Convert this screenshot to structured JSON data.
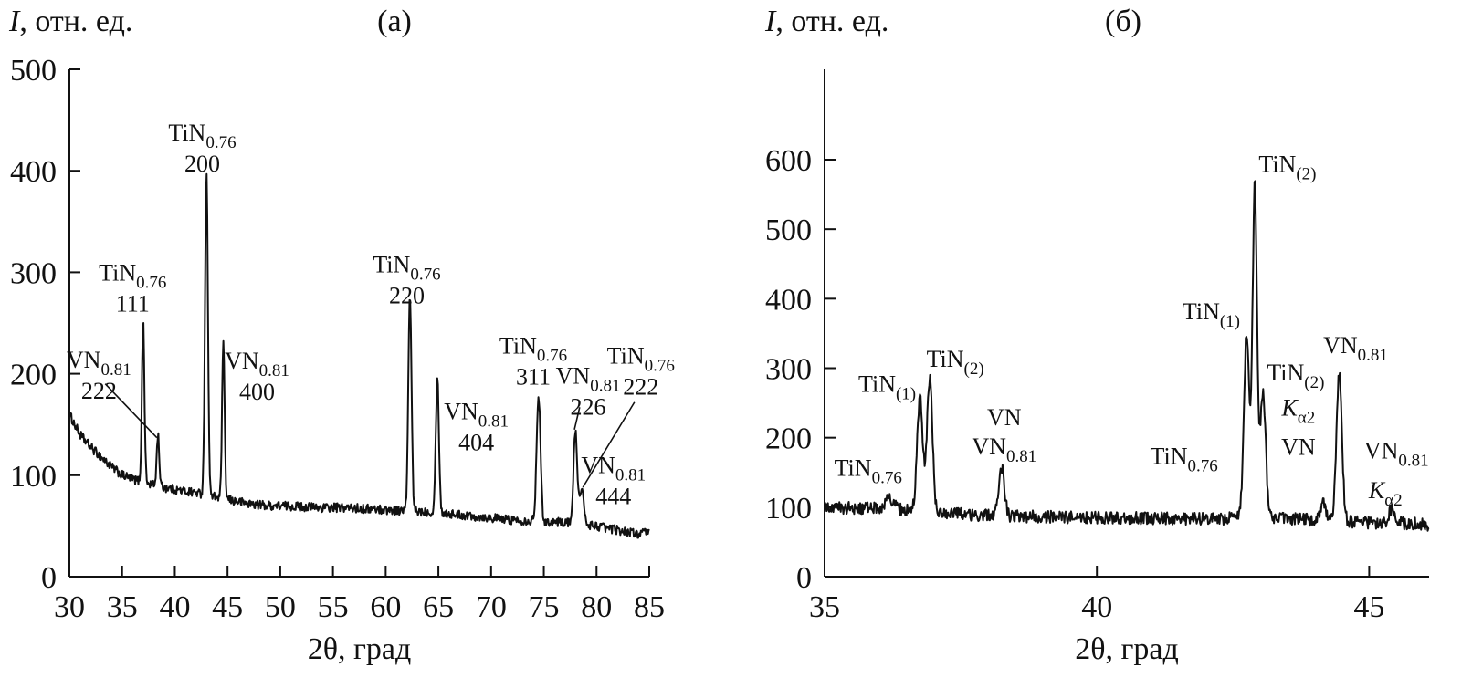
{
  "chart_data": [
    {
      "id": "a",
      "type": "line",
      "panel_label": "(а)",
      "ylabel": "I, отн. ед.",
      "xlabel": "2θ, град",
      "xlim": [
        30,
        85
      ],
      "ylim": [
        0,
        500
      ],
      "xticks": [
        30,
        35,
        40,
        45,
        50,
        55,
        60,
        65,
        70,
        75,
        80,
        85
      ],
      "yticks": [
        0,
        100,
        200,
        300,
        400,
        500
      ],
      "grid": false,
      "baseline": [
        [
          30,
          160
        ],
        [
          31,
          140
        ],
        [
          32,
          128
        ],
        [
          33,
          118
        ],
        [
          34,
          108
        ],
        [
          35,
          100
        ],
        [
          36,
          96
        ],
        [
          37,
          93
        ],
        [
          38,
          90
        ],
        [
          39,
          88
        ],
        [
          40,
          86
        ],
        [
          41,
          84
        ],
        [
          42,
          83
        ],
        [
          43,
          80
        ],
        [
          44,
          78
        ],
        [
          45,
          76
        ],
        [
          46,
          74
        ],
        [
          47,
          72
        ],
        [
          48,
          71
        ],
        [
          49,
          70
        ],
        [
          50,
          70
        ],
        [
          52,
          69
        ],
        [
          54,
          68
        ],
        [
          56,
          68
        ],
        [
          58,
          67
        ],
        [
          60,
          66
        ],
        [
          62,
          65
        ],
        [
          64,
          64
        ],
        [
          66,
          62
        ],
        [
          68,
          60
        ],
        [
          70,
          58
        ],
        [
          72,
          56
        ],
        [
          74,
          55
        ],
        [
          76,
          54
        ],
        [
          78,
          53
        ],
        [
          80,
          50
        ],
        [
          82,
          46
        ],
        [
          84,
          42
        ],
        [
          85,
          44
        ]
      ],
      "peaks": [
        {
          "x": 37.0,
          "y": 252,
          "w": 0.12
        },
        {
          "x": 38.4,
          "y": 140,
          "w": 0.12
        },
        {
          "x": 43.0,
          "y": 396,
          "w": 0.14
        },
        {
          "x": 44.6,
          "y": 230,
          "w": 0.12
        },
        {
          "x": 62.3,
          "y": 276,
          "w": 0.15
        },
        {
          "x": 64.9,
          "y": 195,
          "w": 0.15
        },
        {
          "x": 74.5,
          "y": 180,
          "w": 0.18
        },
        {
          "x": 78.0,
          "y": 142,
          "w": 0.18
        },
        {
          "x": 78.6,
          "y": 86,
          "w": 0.18
        }
      ],
      "annotations": [
        {
          "phase": "TiN",
          "sub": "0.76",
          "hkl": "111",
          "x": 36.0,
          "y": 292,
          "anchor": "middle"
        },
        {
          "phase": "VN",
          "sub": "0.81",
          "hkl": "222",
          "x": 32.8,
          "y": 206,
          "anchor": "middle",
          "leader": [
            [
              33.4,
              190
            ],
            [
              38.3,
              137
            ]
          ]
        },
        {
          "phase": "TiN",
          "sub": "0.76",
          "hkl": "200",
          "x": 42.6,
          "y": 430,
          "anchor": "middle"
        },
        {
          "phase": "VN",
          "sub": "0.81",
          "hkl": "400",
          "x": 47.8,
          "y": 205,
          "anchor": "middle"
        },
        {
          "phase": "TiN",
          "sub": "0.76",
          "hkl": "220",
          "x": 62.0,
          "y": 300,
          "anchor": "middle"
        },
        {
          "phase": "VN",
          "sub": "0.81",
          "hkl": "404",
          "x": 68.6,
          "y": 155,
          "anchor": "middle"
        },
        {
          "phase": "TiN",
          "sub": "0.76",
          "hkl": "311",
          "x": 74.0,
          "y": 220,
          "anchor": "middle"
        },
        {
          "phase": "VN",
          "sub": "0.81",
          "hkl": "226",
          "x": 79.2,
          "y": 190,
          "anchor": "middle",
          "leader": [
            [
              78.4,
              167
            ],
            [
              77.9,
              145
            ]
          ]
        },
        {
          "phase": "TiN",
          "sub": "0.76",
          "hkl": "222",
          "x": 84.2,
          "y": 210,
          "anchor": "middle",
          "leader": [
            [
              83.6,
              172
            ],
            [
              78.7,
              88
            ]
          ]
        },
        {
          "phase": "VN",
          "sub": "0.81",
          "hkl": "444",
          "x": 81.6,
          "y": 102,
          "anchor": "middle"
        }
      ]
    },
    {
      "id": "b",
      "type": "line",
      "panel_label": "(б)",
      "ylabel": "I, отн. ед.",
      "xlabel": "2θ, град",
      "xlim": [
        35,
        46.1
      ],
      "ylim": [
        0,
        730
      ],
      "xticks": [
        35,
        40,
        45
      ],
      "yticks": [
        0,
        100,
        200,
        300,
        400,
        500,
        600
      ],
      "grid": false,
      "baseline": [
        [
          35,
          100
        ],
        [
          36,
          98
        ],
        [
          37,
          92
        ],
        [
          38,
          88
        ],
        [
          39,
          86
        ],
        [
          40,
          85
        ],
        [
          41,
          84
        ],
        [
          42,
          83
        ],
        [
          43,
          85
        ],
        [
          44,
          82
        ],
        [
          45,
          78
        ],
        [
          46,
          76
        ],
        [
          46.1,
          64
        ]
      ],
      "peaks": [
        {
          "x": 36.2,
          "y": 112,
          "w": 0.08
        },
        {
          "x": 36.75,
          "y": 258,
          "w": 0.05
        },
        {
          "x": 36.93,
          "y": 285,
          "w": 0.05
        },
        {
          "x": 38.25,
          "y": 158,
          "w": 0.05
        },
        {
          "x": 42.75,
          "y": 350,
          "w": 0.05
        },
        {
          "x": 42.9,
          "y": 562,
          "w": 0.04
        },
        {
          "x": 43.05,
          "y": 265,
          "w": 0.05
        },
        {
          "x": 44.15,
          "y": 112,
          "w": 0.04
        },
        {
          "x": 44.45,
          "y": 292,
          "w": 0.05
        },
        {
          "x": 45.4,
          "y": 95,
          "w": 0.05
        }
      ],
      "annotations": [
        {
          "phase": "TiN",
          "sub": "0.76",
          "hkl": "",
          "x": 35.8,
          "y": 145,
          "anchor": "middle"
        },
        {
          "phase": "TiN",
          "sub": "(1)",
          "hkl": "",
          "x": 36.15,
          "y": 266,
          "anchor": "middle"
        },
        {
          "phase": "TiN",
          "sub": "(2)",
          "hkl": "",
          "x": 37.4,
          "y": 302,
          "anchor": "middle"
        },
        {
          "phase": "VN",
          "sub": "",
          "hkl": "",
          "x": 38.3,
          "y": 218,
          "anchor": "middle"
        },
        {
          "phase": "VN",
          "sub": "0.81",
          "hkl": "",
          "x": 38.3,
          "y": 176,
          "anchor": "middle"
        },
        {
          "phase": "TiN",
          "sub": "0.76",
          "hkl": "",
          "x": 41.6,
          "y": 162,
          "anchor": "middle"
        },
        {
          "phase": "TiN",
          "sub": "(1)",
          "hkl": "",
          "x": 42.1,
          "y": 370,
          "anchor": "middle"
        },
        {
          "phase": "TiN",
          "sub": "(2)",
          "hkl": "",
          "x": 43.5,
          "y": 582,
          "anchor": "middle"
        },
        {
          "phase": "TiN",
          "sub": "(2)",
          "hkl": "",
          "x": 43.65,
          "y": 282,
          "anchor": "middle"
        },
        {
          "phase": "K",
          "sub": "α2",
          "hkl": "",
          "x": 43.7,
          "y": 232,
          "anchor": "middle",
          "italic": true
        },
        {
          "phase": "VN",
          "sub": "",
          "hkl": "",
          "x": 43.7,
          "y": 175,
          "anchor": "middle"
        },
        {
          "phase": "VN",
          "sub": "0.81",
          "hkl": "",
          "x": 44.75,
          "y": 322,
          "anchor": "middle"
        },
        {
          "phase": "VN",
          "sub": "0.81",
          "hkl": "",
          "x": 45.5,
          "y": 170,
          "anchor": "middle"
        },
        {
          "phase": "K",
          "sub": "α2",
          "hkl": "",
          "x": 45.3,
          "y": 113,
          "anchor": "middle",
          "italic": true
        }
      ]
    }
  ]
}
